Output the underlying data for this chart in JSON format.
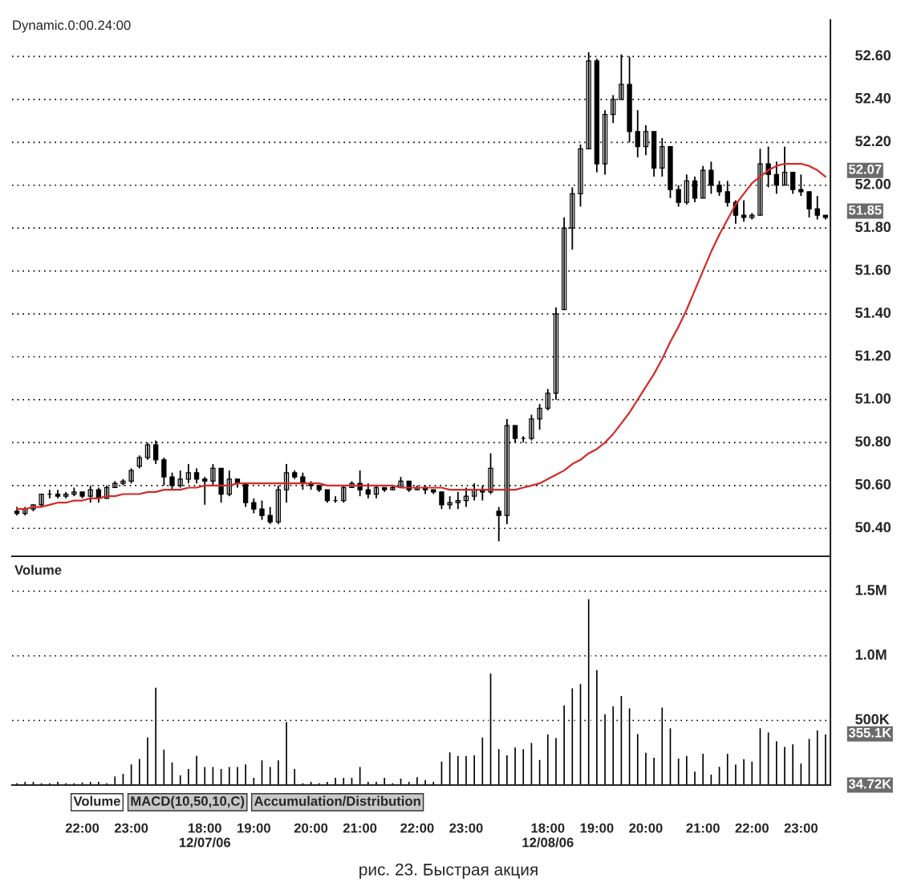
{
  "chart_data": [
    {
      "type": "candlestick",
      "title": "Dynamic.0:00.24:00",
      "tick_labels": "y",
      "grid": "y",
      "ohlc": [
        [
          50.48,
          50.5,
          50.46,
          50.47
        ],
        [
          50.47,
          50.5,
          50.46,
          50.49
        ],
        [
          50.49,
          50.51,
          50.48,
          50.51
        ],
        [
          50.51,
          50.56,
          50.5,
          50.56
        ],
        [
          50.56,
          50.58,
          50.54,
          50.56
        ],
        [
          50.56,
          50.58,
          50.54,
          50.55
        ],
        [
          50.55,
          50.57,
          50.54,
          50.56
        ],
        [
          50.56,
          50.59,
          50.55,
          50.57
        ],
        [
          50.57,
          50.57,
          50.54,
          50.55
        ],
        [
          50.55,
          50.6,
          50.52,
          50.58
        ],
        [
          50.58,
          50.59,
          50.52,
          50.54
        ],
        [
          50.54,
          50.6,
          50.54,
          50.59
        ],
        [
          50.59,
          50.62,
          50.59,
          50.61
        ],
        [
          50.61,
          50.63,
          50.6,
          50.62
        ],
        [
          50.62,
          50.68,
          50.61,
          50.67
        ],
        [
          50.69,
          50.74,
          50.68,
          50.73
        ],
        [
          50.73,
          50.8,
          50.72,
          50.79
        ],
        [
          50.79,
          50.81,
          50.7,
          50.72
        ],
        [
          50.72,
          50.73,
          50.6,
          50.64
        ],
        [
          50.64,
          50.66,
          50.58,
          50.6
        ],
        [
          50.6,
          50.67,
          50.59,
          50.63
        ],
        [
          50.63,
          50.7,
          50.61,
          50.66
        ],
        [
          50.66,
          50.68,
          50.61,
          50.63
        ],
        [
          50.63,
          50.64,
          50.51,
          50.62
        ],
        [
          50.62,
          50.7,
          50.6,
          50.68
        ],
        [
          50.68,
          50.68,
          50.52,
          50.56
        ],
        [
          50.56,
          50.67,
          50.55,
          50.63
        ],
        [
          50.63,
          50.63,
          50.59,
          50.61
        ],
        [
          50.61,
          50.61,
          50.5,
          50.52
        ],
        [
          50.52,
          50.54,
          50.47,
          50.49
        ],
        [
          50.49,
          50.53,
          50.44,
          50.46
        ],
        [
          50.46,
          50.5,
          50.42,
          50.43
        ],
        [
          50.43,
          50.6,
          50.42,
          50.58
        ],
        [
          50.58,
          50.7,
          50.52,
          50.66
        ],
        [
          50.66,
          50.67,
          50.63,
          50.64
        ],
        [
          50.64,
          50.66,
          50.58,
          50.61
        ],
        [
          50.61,
          50.62,
          50.58,
          50.6
        ],
        [
          50.6,
          50.6,
          50.57,
          50.58
        ],
        [
          50.58,
          50.58,
          50.52,
          50.53
        ],
        [
          50.53,
          50.55,
          50.52,
          50.53
        ],
        [
          50.53,
          50.6,
          50.52,
          50.59
        ],
        [
          50.59,
          50.62,
          50.59,
          50.61
        ],
        [
          50.61,
          50.67,
          50.55,
          50.58
        ],
        [
          50.58,
          50.61,
          50.54,
          50.56
        ],
        [
          50.56,
          50.6,
          50.54,
          50.59
        ],
        [
          50.59,
          50.59,
          50.57,
          50.58
        ],
        [
          50.58,
          50.6,
          50.58,
          50.59
        ],
        [
          50.59,
          50.64,
          50.59,
          50.62
        ],
        [
          50.62,
          50.62,
          50.57,
          50.58
        ],
        [
          50.58,
          50.6,
          50.58,
          50.59
        ],
        [
          50.59,
          50.6,
          50.56,
          50.58
        ],
        [
          50.58,
          50.58,
          50.56,
          50.57
        ],
        [
          50.57,
          50.57,
          50.49,
          50.51
        ],
        [
          50.51,
          50.55,
          50.49,
          50.52
        ],
        [
          50.52,
          50.57,
          50.49,
          50.53
        ],
        [
          50.53,
          50.59,
          50.5,
          50.55
        ],
        [
          50.55,
          50.61,
          50.53,
          50.58
        ],
        [
          50.58,
          50.6,
          50.53,
          50.57
        ],
        [
          50.57,
          50.75,
          50.56,
          50.68
        ],
        [
          50.48,
          50.5,
          50.34,
          50.46
        ],
        [
          50.46,
          50.91,
          50.42,
          50.88
        ],
        [
          50.88,
          50.88,
          50.8,
          50.82
        ],
        [
          50.82,
          50.83,
          50.8,
          50.82
        ],
        [
          50.82,
          50.93,
          50.81,
          50.91
        ],
        [
          50.91,
          50.98,
          50.86,
          50.96
        ],
        [
          50.96,
          51.05,
          50.95,
          51.03
        ],
        [
          51.03,
          51.43,
          51.0,
          51.4
        ],
        [
          51.42,
          51.85,
          51.42,
          51.8
        ],
        [
          51.8,
          51.99,
          51.7,
          51.96
        ],
        [
          51.96,
          52.19,
          51.9,
          52.17
        ],
        [
          52.17,
          52.62,
          52.17,
          52.58
        ],
        [
          52.58,
          52.59,
          52.06,
          52.1
        ],
        [
          52.1,
          52.35,
          52.05,
          52.33
        ],
        [
          52.33,
          52.42,
          52.29,
          52.4
        ],
        [
          52.4,
          52.61,
          52.4,
          52.47
        ],
        [
          52.47,
          52.6,
          52.2,
          52.25
        ],
        [
          52.25,
          52.35,
          52.13,
          52.18
        ],
        [
          52.18,
          52.28,
          52.14,
          52.25
        ],
        [
          52.25,
          52.25,
          52.04,
          52.08
        ],
        [
          52.08,
          52.22,
          52.04,
          52.18
        ],
        [
          52.18,
          52.18,
          51.94,
          51.98
        ],
        [
          51.98,
          52.0,
          51.9,
          51.92
        ],
        [
          51.92,
          52.05,
          51.91,
          52.02
        ],
        [
          52.02,
          52.04,
          51.92,
          51.94
        ],
        [
          51.94,
          52.09,
          51.94,
          52.07
        ],
        [
          52.07,
          52.11,
          51.96,
          52.0
        ],
        [
          52.0,
          52.02,
          51.95,
          51.97
        ],
        [
          51.97,
          52.02,
          51.9,
          51.92
        ],
        [
          51.92,
          51.93,
          51.82,
          51.86
        ],
        [
          51.86,
          51.93,
          51.83,
          51.85
        ],
        [
          51.85,
          51.87,
          51.84,
          51.86
        ],
        [
          51.86,
          52.17,
          51.86,
          52.1
        ],
        [
          52.1,
          52.18,
          51.99,
          52.05
        ],
        [
          52.05,
          52.11,
          51.96,
          52.0
        ],
        [
          52.0,
          52.18,
          52.0,
          52.06
        ],
        [
          52.06,
          52.06,
          51.96,
          51.98
        ],
        [
          51.98,
          52.05,
          51.95,
          51.97
        ],
        [
          51.97,
          51.97,
          51.85,
          51.89
        ],
        [
          51.89,
          51.95,
          51.84,
          51.86
        ],
        [
          51.86,
          51.86,
          51.84,
          51.85
        ]
      ],
      "color": "#000000",
      "series": [
        {
          "type": "line",
          "color": "#d42a2a",
          "values": [
            50.49,
            50.49,
            50.5,
            50.5,
            50.51,
            50.52,
            50.52,
            50.53,
            50.53,
            50.54,
            50.54,
            50.55,
            50.55,
            50.56,
            50.56,
            50.56,
            50.57,
            50.57,
            50.58,
            50.58,
            50.58,
            50.59,
            50.59,
            50.6,
            50.6,
            50.6,
            50.6,
            50.61,
            50.61,
            50.61,
            50.61,
            50.61,
            50.61,
            50.61,
            50.61,
            50.61,
            50.61,
            50.61,
            50.6,
            50.6,
            50.6,
            50.6,
            50.6,
            50.6,
            50.6,
            50.6,
            50.6,
            50.59,
            50.59,
            50.59,
            50.59,
            50.59,
            50.59,
            50.58,
            50.58,
            50.58,
            50.58,
            50.58,
            50.58,
            50.58,
            50.58,
            50.58,
            50.59,
            50.6,
            50.61,
            50.63,
            50.65,
            50.67,
            50.7,
            50.72,
            50.75,
            50.77,
            50.8,
            50.84,
            50.89,
            50.94,
            51.0,
            51.06,
            51.12,
            51.19,
            51.27,
            51.34,
            51.42,
            51.51,
            51.6,
            51.69,
            51.77,
            51.84,
            51.91,
            51.96,
            52.01,
            52.04,
            52.07,
            52.09,
            52.1,
            52.1,
            52.1,
            52.09,
            52.07,
            52.04
          ]
        }
      ],
      "ylim": [
        50.27,
        52.77
      ],
      "yticks": [
        {
          "value": 50.4,
          "label": "50.40"
        },
        {
          "value": 50.6,
          "label": "50.60"
        },
        {
          "value": 50.8,
          "label": "50.80"
        },
        {
          "value": 51.0,
          "label": "51.00"
        },
        {
          "value": 51.2,
          "label": "51.20"
        },
        {
          "value": 51.4,
          "label": "51.40"
        },
        {
          "value": 51.6,
          "label": "51.60"
        },
        {
          "value": 51.8,
          "label": "51.80"
        },
        {
          "value": 52.0,
          "label": "52.00"
        },
        {
          "value": 52.2,
          "label": "52.20"
        },
        {
          "value": 52.4,
          "label": "52.40"
        },
        {
          "value": 52.6,
          "label": "52.60"
        }
      ],
      "annotations": [
        "52.07",
        "51.85"
      ]
    },
    {
      "type": "bar",
      "title": "Volume",
      "grid": "y",
      "color": "#000000",
      "categories": [
        null,
        null,
        null,
        null,
        null,
        null,
        null,
        null,
        "22:00",
        null,
        null,
        null,
        null,
        null,
        "23:00",
        null,
        null,
        null,
        null,
        null,
        null,
        null,
        null,
        "18:00\n12/07/06",
        null,
        null,
        null,
        null,
        null,
        "19:00",
        null,
        null,
        null,
        null,
        null,
        null,
        "20:00",
        null,
        null,
        null,
        null,
        null,
        "21:00",
        null,
        null,
        null,
        null,
        null,
        null,
        "22:00",
        null,
        null,
        null,
        null,
        null,
        "23:00",
        null,
        null,
        null,
        null,
        null,
        null,
        null,
        null,
        null,
        "18:00\n12/08/06",
        null,
        null,
        null,
        null,
        null,
        "19:00",
        null,
        null,
        null,
        null,
        null,
        "20:00",
        null,
        null,
        null,
        null,
        null,
        null,
        "21:00",
        null,
        null,
        null,
        null,
        null,
        "22:00",
        null,
        null,
        null,
        null,
        null,
        "23:00",
        null,
        null,
        null
      ],
      "values": [
        19000,
        29000,
        29000,
        19000,
        19000,
        29000,
        19000,
        19000,
        25000,
        29000,
        29000,
        19000,
        71000,
        92000,
        165000,
        206000,
        373000,
        758000,
        279000,
        179000,
        79000,
        129000,
        231000,
        144000,
        144000,
        129000,
        144000,
        144000,
        165000,
        60000,
        196000,
        144000,
        196000,
        492000,
        129000,
        19000,
        29000,
        19000,
        29000,
        60000,
        60000,
        60000,
        144000,
        29000,
        29000,
        60000,
        19000,
        54000,
        29000,
        65000,
        41000,
        29000,
        186000,
        258000,
        229000,
        229000,
        234000,
        372000,
        867000,
        283000,
        234000,
        295000,
        283000,
        331000,
        198000,
        396000,
        367000,
        621000,
        753000,
        785000,
        1442000,
        894000,
        553000,
        613000,
        693000,
        597000,
        398000,
        254000,
        215000,
        604000,
        444000,
        210000,
        229000,
        109000,
        246000,
        85000,
        145000,
        246000,
        162000,
        205000,
        186000,
        444000,
        411000,
        343000,
        299000,
        319000,
        171000,
        362000,
        427000,
        396000
      ],
      "ylim": [
        0,
        1770000
      ],
      "yticks": [
        {
          "value": 500000,
          "label": "500K"
        },
        {
          "value": 1000000,
          "label": "1.0M"
        },
        {
          "value": 1500000,
          "label": "1.5M"
        }
      ],
      "annotations": [
        "355.1K",
        "34.72K",
        "Volume",
        "MACD(10,50,10,C)",
        "Accumulation/Distribution",
        "рис. 23. Быстрая акция"
      ]
    }
  ]
}
